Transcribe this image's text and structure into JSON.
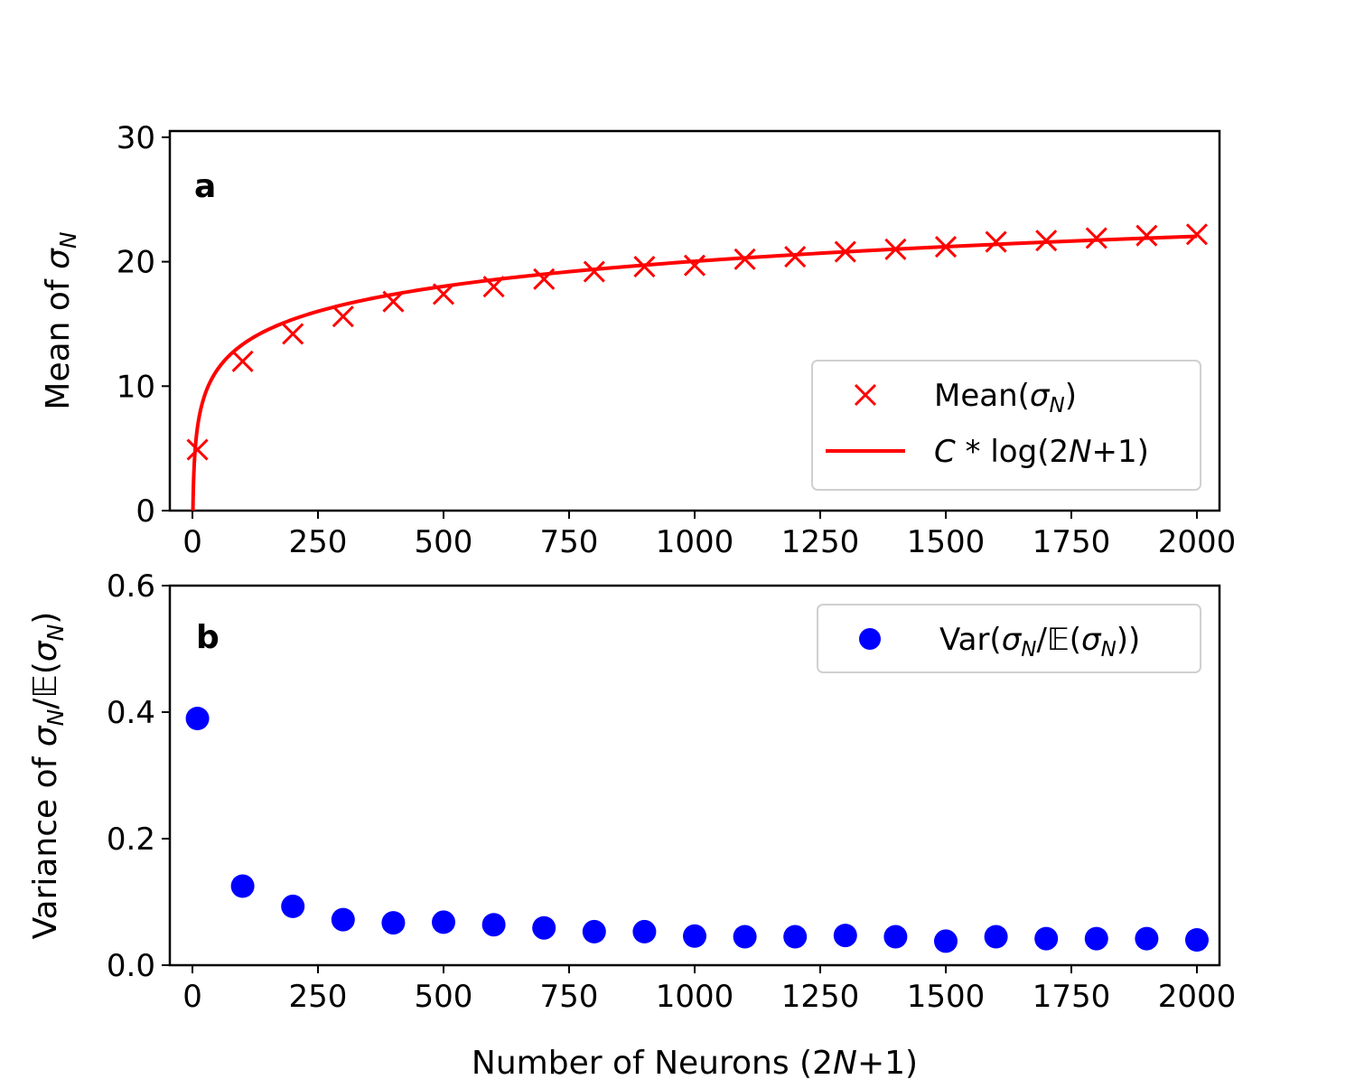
{
  "chart_data": [
    {
      "panel": "a",
      "type": "line+scatter",
      "panel_label": "a",
      "xlabel": "",
      "ylabel": {
        "prefix": "Mean of ",
        "symbol": "σ",
        "sub": "N"
      },
      "xlim": [
        -45,
        2045
      ],
      "ylim": [
        0,
        30.5
      ],
      "xticks": [
        0,
        250,
        500,
        750,
        1000,
        1250,
        1500,
        1750,
        2000
      ],
      "yticks": [
        0,
        10,
        20,
        30
      ],
      "colors": {
        "series": "#ff0000",
        "axis": "#000000"
      },
      "series": [
        {
          "name": "Mean(σN)",
          "kind": "scatter",
          "marker": "x",
          "x": [
            10,
            100,
            200,
            300,
            400,
            500,
            600,
            700,
            800,
            900,
            1000,
            1100,
            1200,
            1300,
            1400,
            1500,
            1600,
            1700,
            1800,
            1900,
            2000
          ],
          "y": [
            4.9,
            12.0,
            14.2,
            15.6,
            16.8,
            17.4,
            18.0,
            18.6,
            19.2,
            19.6,
            19.7,
            20.2,
            20.4,
            20.8,
            21.0,
            21.2,
            21.6,
            21.7,
            21.9,
            22.1,
            22.2
          ]
        },
        {
          "name": "C*log(2N+1)",
          "kind": "line",
          "formula": "C*ln(x)",
          "C": 2.9,
          "x_range": [
            1,
            2000
          ]
        }
      ],
      "legend": {
        "position": "lower-right",
        "entries": [
          {
            "label_parts": [
              "Mean(",
              "σ",
              "N",
              ")"
            ]
          },
          {
            "label_parts": [
              "C",
              " * log(2",
              "N",
              "+1)"
            ]
          }
        ]
      }
    },
    {
      "panel": "b",
      "type": "scatter",
      "panel_label": "b",
      "xlabel": {
        "prefix": "Number of Neurons (2",
        "italic": "N",
        "suffix": "+1)"
      },
      "ylabel": {
        "prefix": "Variance of ",
        "symbol": "σ",
        "sub": "N",
        "mid": "/𝔼(",
        "symbol2": "σ",
        "sub2": "N",
        "suffix": ")"
      },
      "xlim": [
        -45,
        2045
      ],
      "ylim": [
        0,
        0.6
      ],
      "xticks": [
        0,
        250,
        500,
        750,
        1000,
        1250,
        1500,
        1750,
        2000
      ],
      "yticks": [
        "0.0",
        "0.2",
        "0.4",
        "0.6"
      ],
      "colors": {
        "series": "#0000ff",
        "axis": "#000000"
      },
      "series": [
        {
          "name": "Var(σN/𝔼(σN))",
          "kind": "scatter",
          "marker": "o",
          "x": [
            10,
            100,
            200,
            300,
            400,
            500,
            600,
            700,
            800,
            900,
            1000,
            1100,
            1200,
            1300,
            1400,
            1500,
            1600,
            1700,
            1800,
            1900,
            2000
          ],
          "y": [
            0.39,
            0.125,
            0.093,
            0.072,
            0.067,
            0.068,
            0.064,
            0.059,
            0.053,
            0.053,
            0.046,
            0.045,
            0.045,
            0.047,
            0.045,
            0.038,
            0.045,
            0.042,
            0.042,
            0.042,
            0.04
          ]
        }
      ],
      "legend": {
        "position": "upper-right",
        "entries": [
          {
            "label_parts": [
              "Var(",
              "σ",
              "N",
              "/𝔼(",
              "σ",
              "N",
              "))"
            ]
          }
        ]
      }
    }
  ]
}
